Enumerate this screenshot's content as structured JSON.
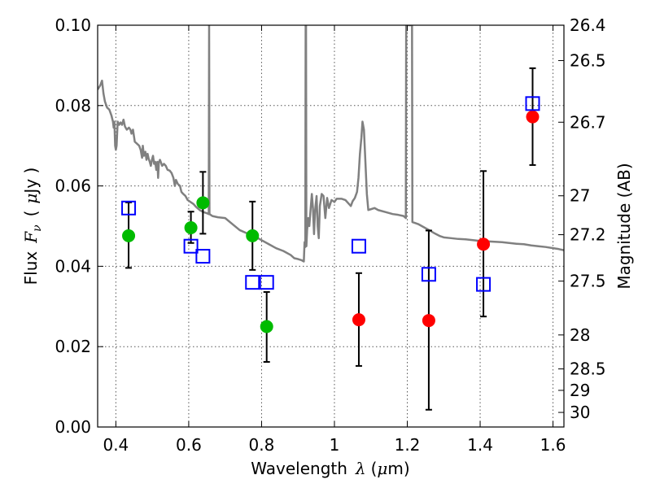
{
  "chart_data": {
    "type": "scatter",
    "title": "",
    "xlabel": {
      "text": "Wavelength",
      "symbol": "λ",
      "unit_open": "(",
      "unit_mu": "μ",
      "unit_rest": "m)"
    },
    "ylabel": {
      "text": "Flux",
      "symbol": "F",
      "subscript": "ν",
      "unit_open": "(",
      "unit_mu": "μ",
      "unit_rest": "Jy )"
    },
    "y2label": "Magnitude (AB)",
    "xlim": [
      0.35,
      1.63
    ],
    "ylim": [
      0.0,
      0.1
    ],
    "grid": true,
    "x_ticks": [
      0.4,
      0.6,
      0.8,
      1.0,
      1.2,
      1.4,
      1.6
    ],
    "x_tick_labels": [
      "0.4",
      "0.6",
      "0.8",
      "1",
      "1.2",
      "1.4",
      "1.6"
    ],
    "y_ticks": [
      0.0,
      0.02,
      0.04,
      0.06,
      0.08,
      0.1
    ],
    "y_tick_labels": [
      "0.00",
      "0.02",
      "0.04",
      "0.06",
      "0.08",
      "0.10"
    ],
    "mag_ticks": [
      26.4,
      26.5,
      26.7,
      27,
      27.2,
      27.5,
      28,
      28.5,
      29,
      30
    ],
    "mag_tick_labels": [
      "26.4",
      "26.5",
      "26.7",
      "27",
      "27.2",
      "27.5",
      "28",
      "28.5",
      "29",
      "30"
    ],
    "colors": {
      "sed": "#808080",
      "optical": "#00bb00",
      "nir": "#ff0000",
      "model": "#0000ff",
      "errorbar": "#000000",
      "grid": "#555555"
    },
    "series": [
      {
        "marker": "circle",
        "color": "#00bb00",
        "points": [
          {
            "x": 0.435,
            "y": 0.0476,
            "ylo": 0.0396,
            "yhi": 0.0559
          },
          {
            "x": 0.606,
            "y": 0.0496,
            "ylo": 0.0458,
            "yhi": 0.0536
          },
          {
            "x": 0.639,
            "y": 0.0558,
            "ylo": 0.0481,
            "yhi": 0.0635
          },
          {
            "x": 0.775,
            "y": 0.0476,
            "ylo": 0.0391,
            "yhi": 0.0561
          },
          {
            "x": 0.814,
            "y": 0.025,
            "ylo": 0.0162,
            "yhi": 0.0336
          }
        ]
      },
      {
        "marker": "circle",
        "color": "#ff0000",
        "points": [
          {
            "x": 1.067,
            "y": 0.0267,
            "ylo": 0.0152,
            "yhi": 0.0383
          },
          {
            "x": 1.259,
            "y": 0.0265,
            "ylo": 0.0043,
            "yhi": 0.0489
          },
          {
            "x": 1.409,
            "y": 0.0455,
            "ylo": 0.0275,
            "yhi": 0.0637
          },
          {
            "x": 1.544,
            "y": 0.0772,
            "ylo": 0.0652,
            "yhi": 0.0893
          }
        ]
      },
      {
        "marker": "square",
        "color": "#0000ff",
        "points": [
          {
            "x": 0.435,
            "y": 0.0545
          },
          {
            "x": 0.606,
            "y": 0.045
          },
          {
            "x": 0.639,
            "y": 0.0425
          },
          {
            "x": 0.775,
            "y": 0.036
          },
          {
            "x": 0.814,
            "y": 0.036
          },
          {
            "x": 1.067,
            "y": 0.045
          },
          {
            "x": 1.259,
            "y": 0.038
          },
          {
            "x": 1.409,
            "y": 0.0355
          },
          {
            "x": 1.544,
            "y": 0.0805
          }
        ]
      },
      {
        "marker": "line",
        "color": "#808080",
        "points": [
          [
            0.35,
            0.084
          ],
          [
            0.357,
            0.085
          ],
          [
            0.362,
            0.0862
          ],
          [
            0.366,
            0.083
          ],
          [
            0.37,
            0.081
          ],
          [
            0.376,
            0.0795
          ],
          [
            0.382,
            0.079
          ],
          [
            0.388,
            0.0775
          ],
          [
            0.392,
            0.076
          ],
          [
            0.394,
            0.0745
          ],
          [
            0.396,
            0.076
          ],
          [
            0.398,
            0.07
          ],
          [
            0.4,
            0.069
          ],
          [
            0.402,
            0.07
          ],
          [
            0.405,
            0.076
          ],
          [
            0.409,
            0.0752
          ],
          [
            0.413,
            0.0758
          ],
          [
            0.417,
            0.0752
          ],
          [
            0.421,
            0.0765
          ],
          [
            0.425,
            0.0748
          ],
          [
            0.43,
            0.074
          ],
          [
            0.436,
            0.0745
          ],
          [
            0.44,
            0.074
          ],
          [
            0.443,
            0.073
          ],
          [
            0.447,
            0.074
          ],
          [
            0.452,
            0.071
          ],
          [
            0.458,
            0.0705
          ],
          [
            0.464,
            0.07
          ],
          [
            0.468,
            0.069
          ],
          [
            0.472,
            0.067
          ],
          [
            0.474,
            0.07
          ],
          [
            0.477,
            0.0675
          ],
          [
            0.481,
            0.0685
          ],
          [
            0.484,
            0.0665
          ],
          [
            0.487,
            0.068
          ],
          [
            0.49,
            0.0668
          ],
          [
            0.493,
            0.066
          ],
          [
            0.496,
            0.065
          ],
          [
            0.499,
            0.0665
          ],
          [
            0.502,
            0.0675
          ],
          [
            0.505,
            0.0655
          ],
          [
            0.508,
            0.066
          ],
          [
            0.511,
            0.064
          ],
          [
            0.514,
            0.066
          ],
          [
            0.516,
            0.062
          ],
          [
            0.518,
            0.0658
          ],
          [
            0.521,
            0.0665
          ],
          [
            0.524,
            0.0658
          ],
          [
            0.527,
            0.065
          ],
          [
            0.532,
            0.0655
          ],
          [
            0.537,
            0.065
          ],
          [
            0.542,
            0.064
          ],
          [
            0.548,
            0.0638
          ],
          [
            0.553,
            0.0632
          ],
          [
            0.558,
            0.062
          ],
          [
            0.562,
            0.06
          ],
          [
            0.565,
            0.0615
          ],
          [
            0.57,
            0.0605
          ],
          [
            0.576,
            0.06
          ],
          [
            0.58,
            0.0585
          ],
          [
            0.585,
            0.058
          ],
          [
            0.591,
            0.0575
          ],
          [
            0.597,
            0.0565
          ],
          [
            0.605,
            0.056
          ],
          [
            0.613,
            0.0555
          ],
          [
            0.62,
            0.0548
          ],
          [
            0.63,
            0.054
          ],
          [
            0.64,
            0.0535
          ],
          [
            0.65,
            0.0532
          ],
          [
            0.655,
            0.053
          ],
          [
            0.656,
            0.1
          ],
          [
            0.657,
            0.053
          ],
          [
            0.665,
            0.0525
          ],
          [
            0.68,
            0.0522
          ],
          [
            0.7,
            0.052
          ],
          [
            0.72,
            0.0505
          ],
          [
            0.74,
            0.049
          ],
          [
            0.76,
            0.0482
          ],
          [
            0.78,
            0.0475
          ],
          [
            0.8,
            0.0465
          ],
          [
            0.82,
            0.0455
          ],
          [
            0.84,
            0.0445
          ],
          [
            0.86,
            0.0438
          ],
          [
            0.88,
            0.0428
          ],
          [
            0.89,
            0.042
          ],
          [
            0.9,
            0.0418
          ],
          [
            0.91,
            0.0415
          ],
          [
            0.916,
            0.0412
          ],
          [
            0.918,
            0.046
          ],
          [
            0.92,
            0.0448
          ],
          [
            0.921,
            0.1
          ],
          [
            0.922,
            0.1
          ],
          [
            0.923,
            0.045
          ],
          [
            0.925,
            0.049
          ],
          [
            0.928,
            0.052
          ],
          [
            0.931,
            0.05
          ],
          [
            0.934,
            0.0535
          ],
          [
            0.938,
            0.058
          ],
          [
            0.941,
            0.0545
          ],
          [
            0.944,
            0.048
          ],
          [
            0.947,
            0.054
          ],
          [
            0.951,
            0.0575
          ],
          [
            0.954,
            0.05
          ],
          [
            0.957,
            0.047
          ],
          [
            0.96,
            0.055
          ],
          [
            0.965,
            0.058
          ],
          [
            0.97,
            0.0575
          ],
          [
            0.975,
            0.052
          ],
          [
            0.98,
            0.057
          ],
          [
            0.985,
            0.0545
          ],
          [
            0.992,
            0.0565
          ],
          [
            1.0,
            0.056
          ],
          [
            1.006,
            0.0568
          ],
          [
            1.012,
            0.0568
          ],
          [
            1.02,
            0.0568
          ],
          [
            1.03,
            0.0565
          ],
          [
            1.04,
            0.0555
          ],
          [
            1.045,
            0.055
          ],
          [
            1.05,
            0.0562
          ],
          [
            1.056,
            0.057
          ],
          [
            1.062,
            0.0585
          ],
          [
            1.066,
            0.062
          ],
          [
            1.07,
            0.068
          ],
          [
            1.074,
            0.072
          ],
          [
            1.077,
            0.076
          ],
          [
            1.081,
            0.074
          ],
          [
            1.085,
            0.066
          ],
          [
            1.089,
            0.058
          ],
          [
            1.093,
            0.054
          ],
          [
            1.1,
            0.0542
          ],
          [
            1.11,
            0.0545
          ],
          [
            1.12,
            0.054
          ],
          [
            1.14,
            0.0535
          ],
          [
            1.16,
            0.053
          ],
          [
            1.175,
            0.0528
          ],
          [
            1.19,
            0.0525
          ],
          [
            1.196,
            0.052
          ],
          [
            1.197,
            0.1
          ],
          [
            1.213,
            0.1
          ],
          [
            1.214,
            0.051
          ],
          [
            1.23,
            0.0505
          ],
          [
            1.24,
            0.05
          ],
          [
            1.25,
            0.0495
          ],
          [
            1.26,
            0.049
          ],
          [
            1.275,
            0.0482
          ],
          [
            1.29,
            0.0475
          ],
          [
            1.3,
            0.0472
          ],
          [
            1.32,
            0.047
          ],
          [
            1.34,
            0.0468
          ],
          [
            1.36,
            0.0467
          ],
          [
            1.38,
            0.0465
          ],
          [
            1.4,
            0.0463
          ],
          [
            1.42,
            0.0462
          ],
          [
            1.44,
            0.0461
          ],
          [
            1.46,
            0.046
          ],
          [
            1.48,
            0.0458
          ],
          [
            1.5,
            0.0456
          ],
          [
            1.52,
            0.0455
          ],
          [
            1.54,
            0.0452
          ],
          [
            1.56,
            0.045
          ],
          [
            1.58,
            0.0448
          ],
          [
            1.6,
            0.0445
          ],
          [
            1.615,
            0.0443
          ],
          [
            1.63,
            0.044
          ]
        ]
      }
    ]
  }
}
